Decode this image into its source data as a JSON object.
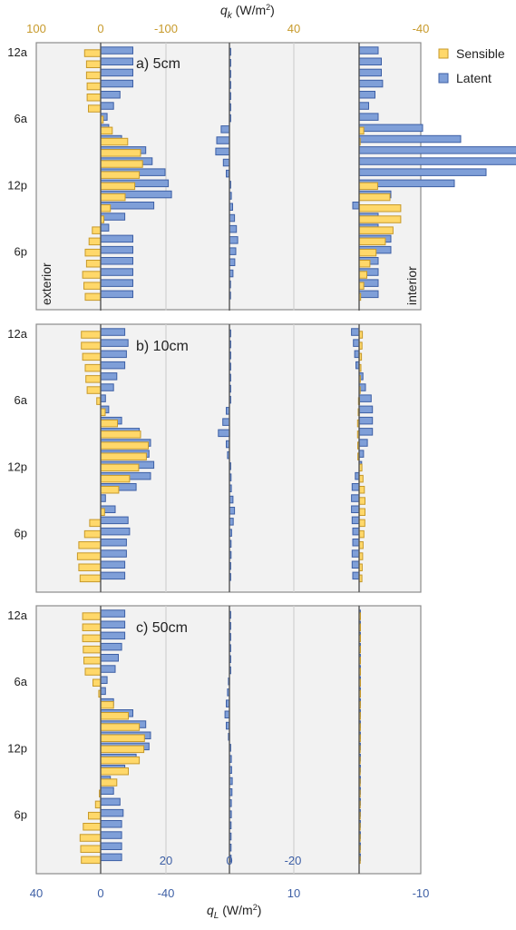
{
  "chart_data": {
    "type": "bar",
    "top_axis_label": "q_k (W/m²)",
    "bottom_axis_label": "q_L (W/m²)",
    "top_axis_ticks": [
      "100",
      "0",
      "-100",
      "40",
      "-40"
    ],
    "bottom_axis_ticks": [
      "40",
      "0",
      "-40",
      "10",
      "-10"
    ],
    "inner_axis_ticks": [
      "20",
      "0",
      "-20"
    ],
    "y_tick_labels": [
      "12a",
      "6a",
      "12p",
      "6p"
    ],
    "legend": [
      {
        "name": "Sensible",
        "color": "#ffd86a",
        "border": "#c79a2b"
      },
      {
        "name": "Latent",
        "color": "#7f9fd8",
        "border": "#3d5fa5"
      }
    ],
    "side_labels": {
      "left": "exterior",
      "right": "interior"
    },
    "colors": {
      "top_axis": "#c79a2b",
      "bottom_axis": "#3d5fa5",
      "panel_bg": "#f2f2f2"
    },
    "hours": [
      0,
      1,
      2,
      3,
      4,
      5,
      6,
      7,
      8,
      9,
      10,
      11,
      12,
      13,
      14,
      15,
      16,
      17,
      18,
      19,
      20,
      21,
      22
    ],
    "panels": [
      {
        "title": "a) 5cm",
        "exterior_sensible": [
          25,
          22,
          22,
          21,
          21,
          19,
          -4,
          -18,
          -42,
          -62,
          -65,
          -60,
          -53,
          -38,
          -15,
          -5,
          13,
          18,
          24,
          22,
          28,
          26,
          24
        ],
        "exterior_latent": [
          -20,
          -20,
          -20,
          -20,
          -12,
          -8,
          -4,
          -5,
          -13,
          -28,
          -32,
          -40,
          -42,
          -44,
          -33,
          -15,
          -5,
          -20,
          -20,
          -20,
          -20,
          -20,
          -20
        ],
        "middle_latent": [
          -0.4,
          -0.4,
          -0.4,
          -0.4,
          -0.4,
          -0.4,
          -0.4,
          2.6,
          4.0,
          4.3,
          1.9,
          1.0,
          -0.4,
          -0.6,
          -1.0,
          -1.6,
          -2.2,
          -2.6,
          -2.0,
          -1.7,
          -1.1,
          -0.3,
          -0.3
        ],
        "interior_sensible": [
          0,
          0,
          0,
          0,
          0,
          0,
          0,
          -3,
          -0.7,
          0,
          0,
          0,
          -12,
          -20,
          -27,
          -27,
          -22,
          -17,
          -11,
          -7,
          -5,
          -3,
          -1
        ],
        "interior_latent": [
          -3,
          -3.5,
          -3.5,
          -3.7,
          -2.5,
          -1.5,
          -3,
          -10,
          -16,
          -25,
          -25,
          -20,
          -15,
          -5,
          1,
          -3,
          -3,
          -5,
          -5,
          -3,
          -3,
          -3,
          -3
        ]
      },
      {
        "title": "b) 10cm",
        "exterior_sensible": [
          30,
          30,
          28,
          24,
          23,
          21,
          6,
          -7,
          -26,
          -62,
          -74,
          -71,
          -59,
          -45,
          -28,
          0,
          -6,
          17,
          25,
          34,
          36,
          34,
          32
        ],
        "exterior_latent": [
          -15,
          -17,
          -16,
          -15,
          -10,
          -8,
          -3,
          -5,
          -13,
          -24,
          -31,
          -30,
          -33,
          -31,
          -22,
          -3,
          -9,
          -17,
          -18,
          -16,
          -16,
          -15,
          -15
        ],
        "middle_latent": [
          -0.4,
          -0.4,
          -0.4,
          -0.4,
          -0.4,
          -0.4,
          -0.4,
          1.0,
          2.1,
          3.5,
          1.0,
          0.6,
          -0.4,
          -0.5,
          -0.6,
          -1.1,
          -1.6,
          -1.2,
          -0.7,
          -0.5,
          -0.5,
          -0.4,
          -0.4
        ],
        "interior_sensible": [
          -2.1,
          -1.9,
          -1.5,
          -1.2,
          -0.8,
          -0.6,
          0.4,
          0.6,
          1.0,
          1.0,
          0.9,
          0.8,
          -1.8,
          -2.5,
          -3.4,
          -3.8,
          -3.8,
          -3.7,
          -3.1,
          -2.6,
          -2.3,
          -2.0,
          -1.8
        ],
        "interior_latent": [
          1.2,
          0.9,
          0.7,
          0.5,
          -0.6,
          -1.0,
          -1.9,
          -2.1,
          -2.1,
          -2.1,
          -1.3,
          -0.7,
          -0.4,
          0.6,
          1.1,
          1.2,
          1.2,
          1.1,
          1.0,
          1.0,
          1.1,
          1.1,
          1.0
        ]
      },
      {
        "title": "c) 50cm",
        "exterior_sensible": [
          28,
          28,
          28,
          27,
          26,
          24,
          12,
          3,
          -20,
          -43,
          -60,
          -68,
          -67,
          -60,
          -43,
          -25,
          2,
          8,
          19,
          27,
          32,
          31,
          30
        ],
        "exterior_latent": [
          -15,
          -15,
          -15,
          -13,
          -11,
          -9,
          -4,
          -3,
          -8,
          -20,
          -28,
          -31,
          -30,
          -22,
          -15,
          -6,
          -8,
          -12,
          -14,
          -13,
          -13,
          -13,
          -13
        ],
        "middle_latent": [
          -0.4,
          -0.4,
          -0.4,
          -0.4,
          -0.4,
          -0.4,
          0.3,
          0.6,
          1.0,
          1.4,
          1.0,
          0.3,
          -0.4,
          -0.6,
          -0.7,
          -0.9,
          -0.8,
          -0.6,
          -0.6,
          -0.5,
          -0.5,
          -0.5,
          -0.5
        ],
        "interior_sensible": [
          -0.9,
          -0.9,
          -0.9,
          -0.9,
          -0.9,
          -0.9,
          -0.9,
          -0.9,
          -0.8,
          -0.8,
          -0.8,
          -0.8,
          -0.6,
          -0.6,
          -0.5,
          -0.5,
          -0.4,
          -0.4,
          -0.4,
          -0.4,
          -0.5,
          -0.6,
          -0.6
        ],
        "interior_latent": [
          -0.2,
          -0.2,
          -0.2,
          -0.2,
          -0.2,
          -0.2,
          -0.2,
          -0.2,
          -0.2,
          -0.2,
          -0.2,
          -0.2,
          -0.2,
          -0.2,
          -0.2,
          -0.2,
          -0.2,
          -0.2,
          -0.2,
          -0.2,
          -0.2,
          -0.2,
          -0.2
        ]
      }
    ]
  }
}
